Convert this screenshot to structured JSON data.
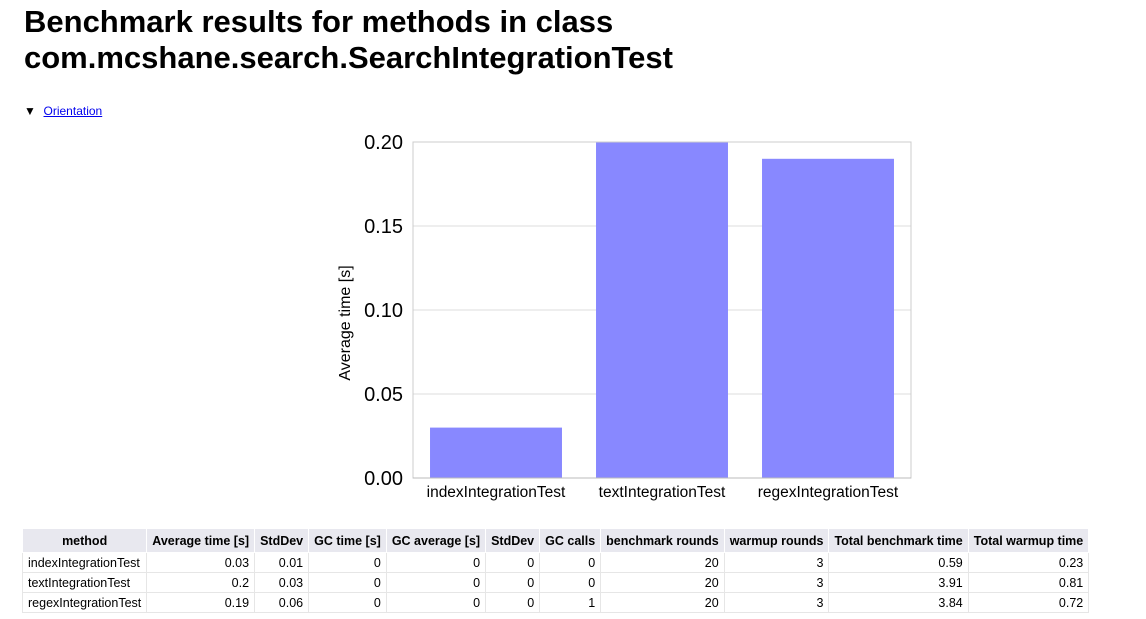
{
  "page": {
    "title_line1": "Benchmark results for methods in class",
    "title_line2": "com.mcshane.search.SearchIntegrationTest",
    "orientation_marker": "▼",
    "orientation_link": "Orientation"
  },
  "chart_data": {
    "type": "bar",
    "categories": [
      "indexIntegrationTest",
      "textIntegrationTest",
      "regexIntegrationTest"
    ],
    "values": [
      0.03,
      0.2,
      0.19
    ],
    "title": "",
    "xlabel": "",
    "ylabel": "Average time [s]",
    "ylim": [
      0,
      0.2
    ],
    "yticks": [
      "0.00",
      "0.05",
      "0.10",
      "0.15",
      "0.20"
    ],
    "grid": true,
    "bar_color": "#8888ff"
  },
  "table": {
    "headers": [
      "method",
      "Average time [s]",
      "StdDev",
      "GC time [s]",
      "GC average [s]",
      "StdDev",
      "GC calls",
      "benchmark rounds",
      "warmup rounds",
      "Total benchmark time",
      "Total warmup time"
    ],
    "rows": [
      [
        "indexIntegrationTest",
        "0.03",
        "0.01",
        "0",
        "0",
        "0",
        "0",
        "20",
        "3",
        "0.59",
        "0.23"
      ],
      [
        "textIntegrationTest",
        "0.2",
        "0.03",
        "0",
        "0",
        "0",
        "0",
        "20",
        "3",
        "3.91",
        "0.81"
      ],
      [
        "regexIntegrationTest",
        "0.19",
        "0.06",
        "0",
        "0",
        "0",
        "1",
        "20",
        "3",
        "3.84",
        "0.72"
      ]
    ]
  }
}
